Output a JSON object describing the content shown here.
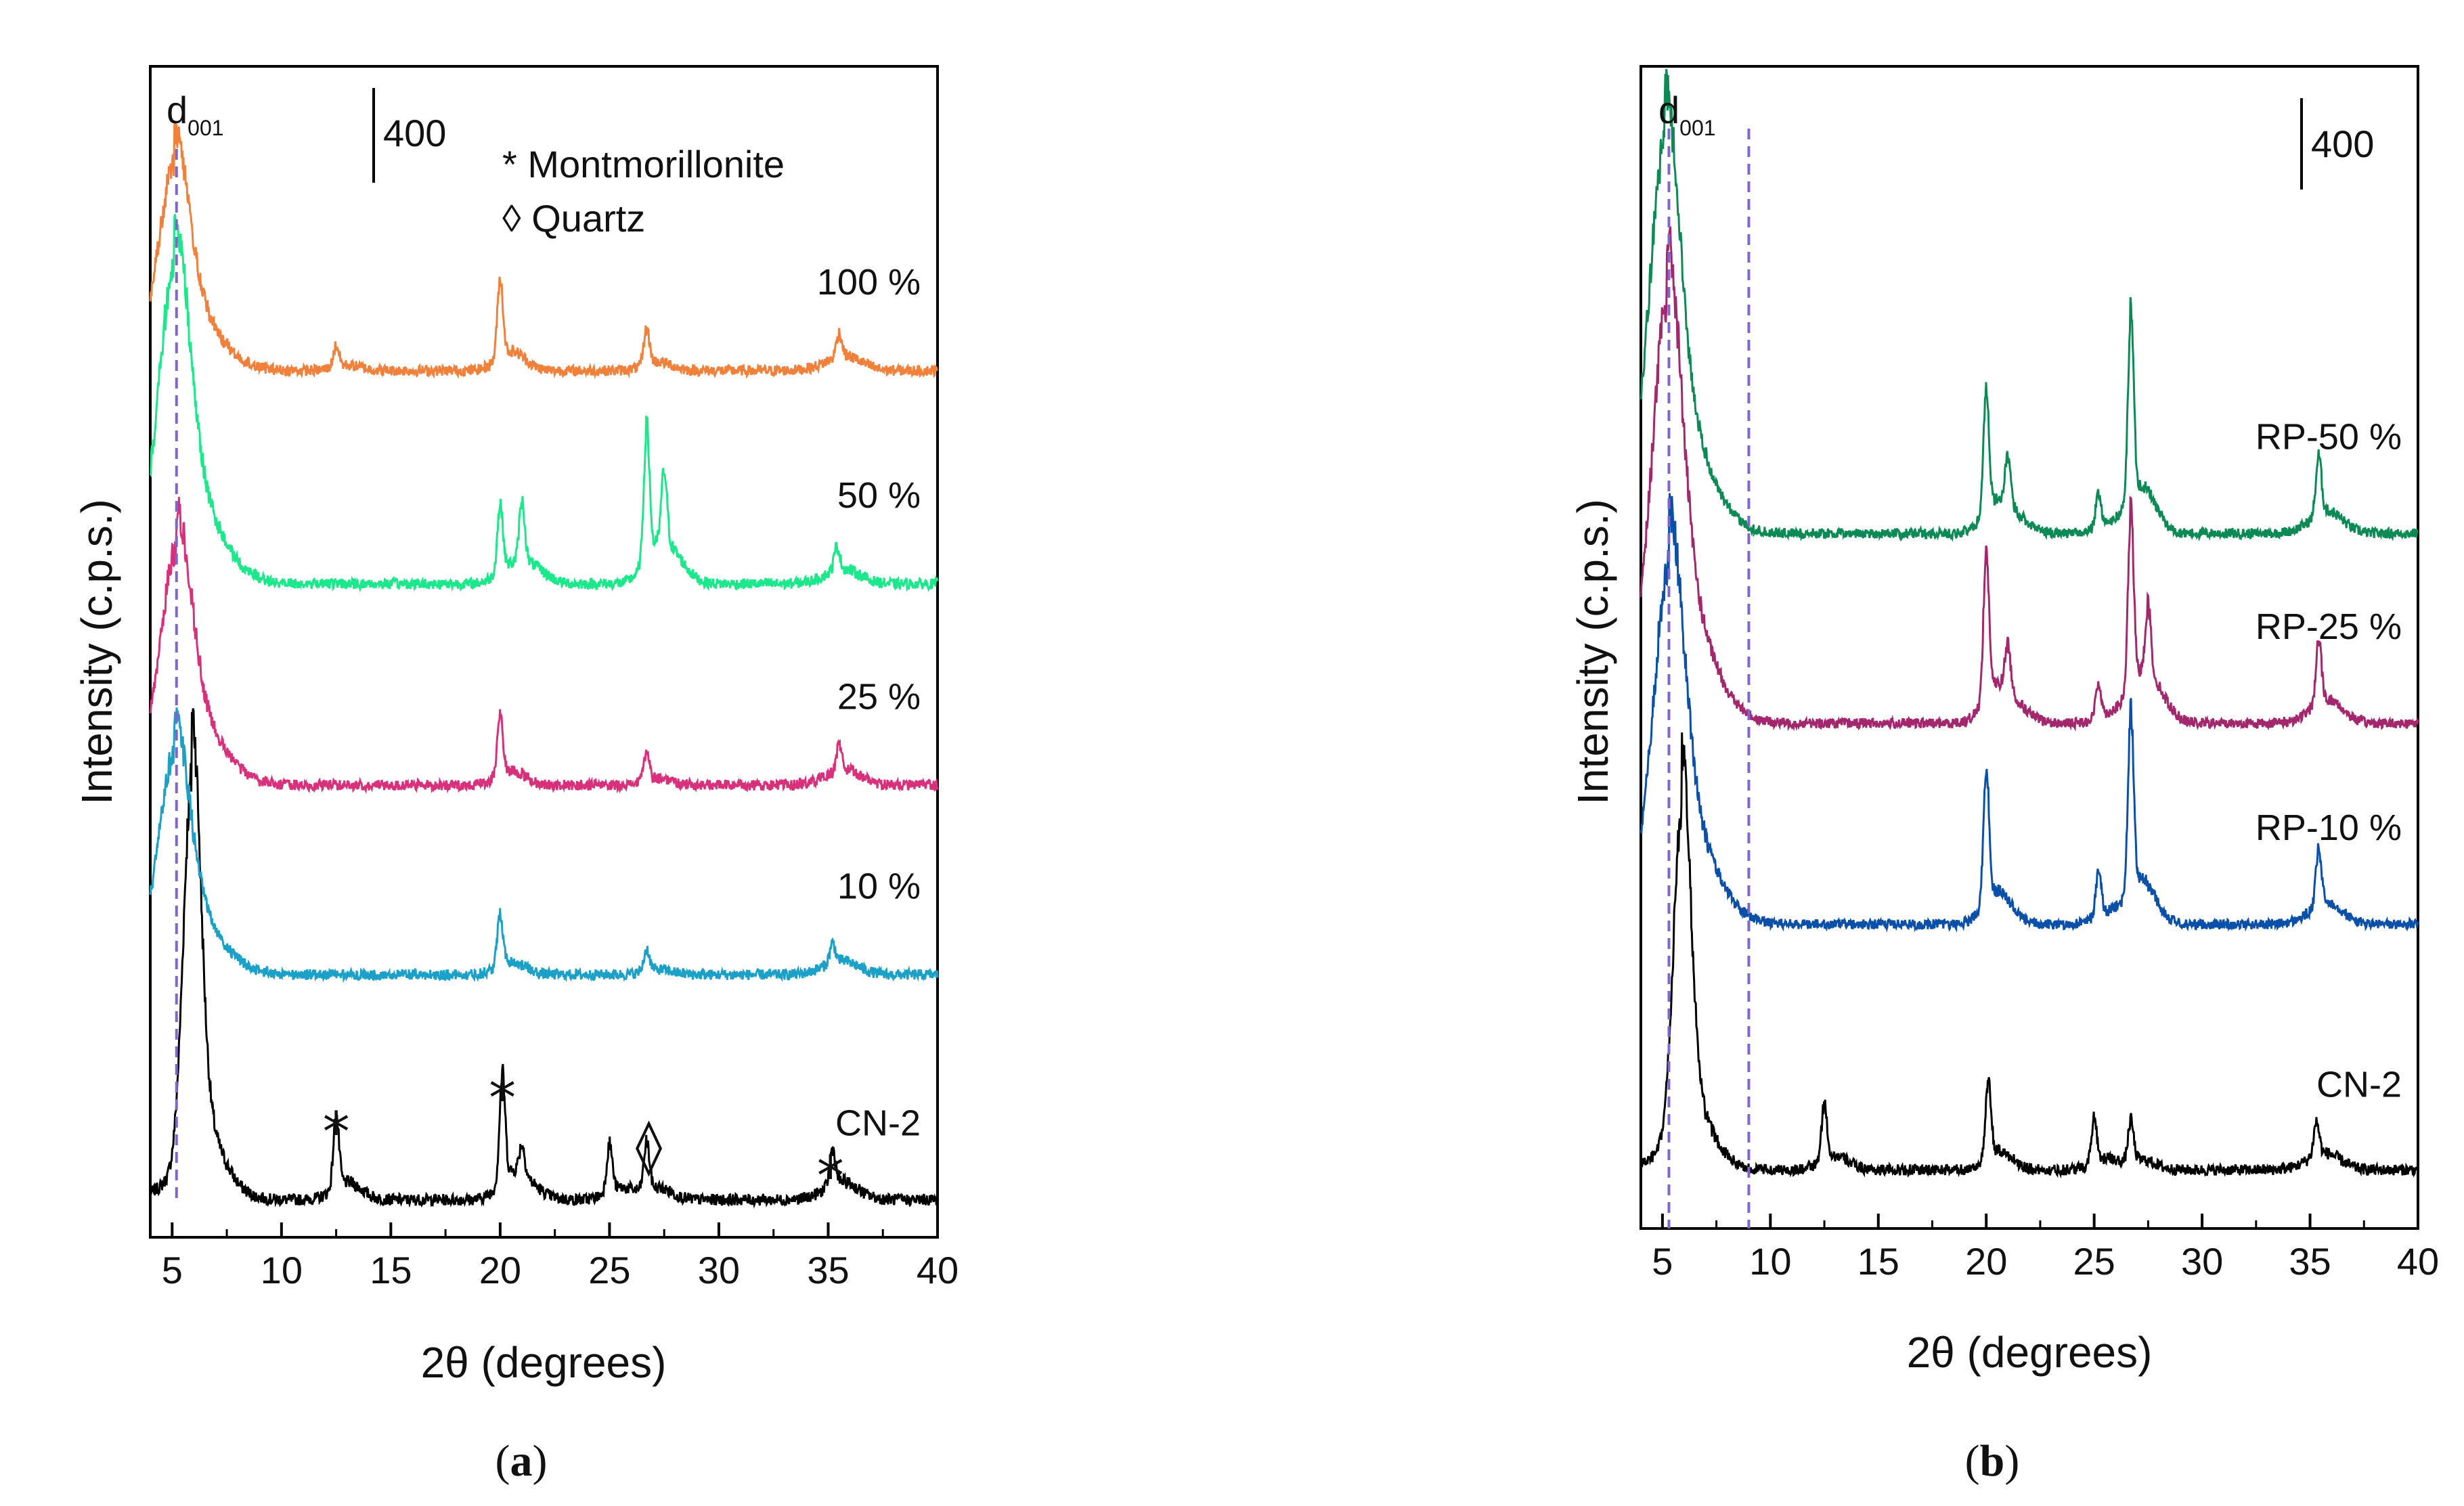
{
  "figure": {
    "panel_a": {
      "label_open": "(",
      "label_letter": "a",
      "label_close": ")",
      "xlabel": "2θ (degrees)",
      "ylabel": "Intensity (c.p.s.)",
      "scale_bar_label": "400",
      "d001_main": "d",
      "d001_sub": "001",
      "legend": [
        {
          "symbol": "*",
          "text": "Montmorillonite"
        },
        {
          "symbol": "◊",
          "text": "Quartz"
        }
      ],
      "markers": [
        {
          "symbol": "*",
          "x": 12.5
        },
        {
          "symbol": "*",
          "x": 20.1
        },
        {
          "symbol": "◊",
          "x": 26.8
        },
        {
          "symbol": "*",
          "x": 35.1
        }
      ]
    },
    "panel_b": {
      "label_open": "(",
      "label_letter": "b",
      "label_close": ")",
      "xlabel": "2θ (degrees)",
      "ylabel": "Intensity (c.p.s.)",
      "scale_bar_label": "400",
      "d001_main": "d",
      "d001_sub": "001"
    }
  },
  "chart_data": [
    {
      "type": "line",
      "title": "(a)",
      "xlabel": "2θ (degrees)",
      "ylabel": "Intensity (c.p.s.)",
      "xlim": [
        4,
        40
      ],
      "xticks": [
        5,
        10,
        15,
        20,
        25,
        30,
        35,
        40
      ],
      "scale_bar_cps": 400,
      "dashed_lines_x": [
        5.2
      ],
      "series": [
        {
          "name": "CN-2",
          "color": "#000000",
          "offset_cps": 0,
          "main_peak": [
            5.9,
            1650
          ],
          "baseline_cps": 50,
          "peaks": [
            [
              12.5,
              300
            ],
            [
              20.1,
              450
            ],
            [
              21.0,
              120
            ],
            [
              25.0,
              200
            ],
            [
              26.7,
              200
            ],
            [
              35.2,
              150
            ]
          ]
        },
        {
          "name": "10 %",
          "color": "#1ba0c8",
          "offset_cps": 1000,
          "main_peak": [
            5.1,
            700
          ],
          "baseline_cps": 0,
          "peaks": [
            [
              20.0,
              220
            ],
            [
              26.7,
              90
            ],
            [
              35.2,
              80
            ]
          ]
        },
        {
          "name": "25 %",
          "color": "#d9307c",
          "offset_cps": 1800,
          "main_peak": [
            5.2,
            750
          ],
          "baseline_cps": 0,
          "peaks": [
            [
              20.0,
              250
            ],
            [
              26.7,
              120
            ],
            [
              35.5,
              110
            ]
          ]
        },
        {
          "name": "50 %",
          "color": "#1be88b",
          "offset_cps": 2650,
          "main_peak": [
            5.1,
            1000
          ],
          "baseline_cps": 0,
          "peaks": [
            [
              20.0,
              280
            ],
            [
              21.0,
              250
            ],
            [
              26.7,
              560
            ],
            [
              27.5,
              300
            ],
            [
              35.4,
              100
            ]
          ]
        },
        {
          "name": "100 %",
          "color": "#f0803a",
          "offset_cps": 3550,
          "main_peak": [
            5.1,
            650
          ],
          "baseline_cps": 0,
          "peaks": [
            [
              12.5,
              90
            ],
            [
              20.0,
              330
            ],
            [
              26.7,
              150
            ],
            [
              35.5,
              100
            ]
          ]
        }
      ]
    },
    {
      "type": "line",
      "title": "(b)",
      "xlabel": "2θ (degrees)",
      "ylabel": "Intensity (c.p.s.)",
      "xlim": [
        4,
        40
      ],
      "xticks": [
        5,
        10,
        15,
        20,
        25,
        30,
        35,
        40
      ],
      "scale_bar_cps": 400,
      "dashed_lines_x": [
        5.3,
        9.0
      ],
      "series": [
        {
          "name": "CN-2",
          "color": "#000000",
          "offset_cps": 0,
          "main_peak": [
            5.9,
            1500
          ],
          "baseline_cps": 50,
          "peaks": [
            [
              12.5,
              250
            ],
            [
              20.1,
              330
            ],
            [
              25.0,
              200
            ],
            [
              26.7,
              180
            ],
            [
              35.3,
              150
            ]
          ]
        },
        {
          "name": "RP-10 %",
          "color": "#0a4fa8",
          "offset_cps": 1150,
          "main_peak": [
            5.3,
            1200
          ],
          "baseline_cps": 0,
          "peaks": [
            [
              20.0,
              600
            ],
            [
              25.2,
              200
            ],
            [
              26.7,
              800
            ],
            [
              35.4,
              250
            ]
          ]
        },
        {
          "name": "RP-25 %",
          "color": "#a3276d",
          "offset_cps": 2050,
          "main_peak": [
            5.2,
            1400
          ],
          "baseline_cps": 0,
          "peaks": [
            [
              20.0,
              650
            ],
            [
              21.0,
              200
            ],
            [
              25.2,
              150
            ],
            [
              26.7,
              800
            ],
            [
              27.5,
              300
            ],
            [
              35.4,
              280
            ]
          ]
        },
        {
          "name": "RP-50 %",
          "color": "#0b8a55",
          "offset_cps": 2900,
          "main_peak": [
            5.1,
            1300
          ],
          "baseline_cps": 0,
          "peaks": [
            [
              20.0,
              550
            ],
            [
              21.0,
              200
            ],
            [
              25.2,
              150
            ],
            [
              26.7,
              850
            ],
            [
              35.4,
              260
            ]
          ]
        }
      ]
    }
  ]
}
